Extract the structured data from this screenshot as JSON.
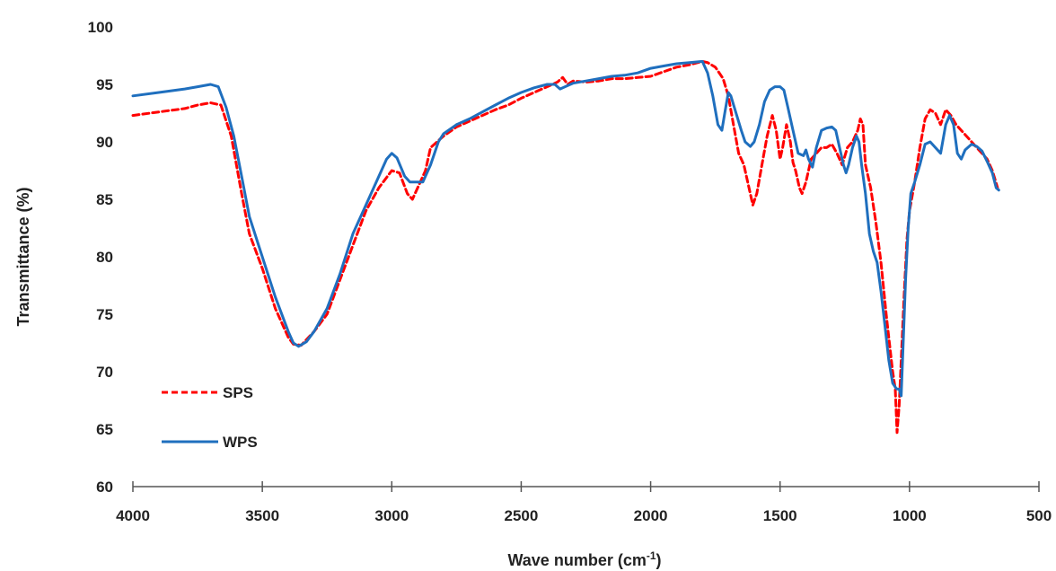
{
  "chart_data": {
    "type": "line",
    "title": "",
    "xlabel_main": "Wave number (cm",
    "xlabel_sup": "-1",
    "xlabel_end": ")",
    "ylabel": "Transmittance (%)",
    "xlim": [
      4000,
      500
    ],
    "ylim": [
      60,
      100
    ],
    "x_reversed": true,
    "x_ticks": [
      "4000",
      "3500",
      "3000",
      "2500",
      "2000",
      "1500",
      "1000",
      "500"
    ],
    "x_tick_values": [
      4000,
      3500,
      3000,
      2500,
      2000,
      1500,
      1000,
      500
    ],
    "y_ticks": [
      "60",
      "65",
      "70",
      "75",
      "80",
      "85",
      "90",
      "95",
      "100"
    ],
    "y_tick_values": [
      60,
      65,
      70,
      75,
      80,
      85,
      90,
      95,
      100
    ],
    "grid": false,
    "legend_position": "bottom-left",
    "series": [
      {
        "name": "SPS",
        "color": "#ff0000",
        "dash": "dashed",
        "points": [
          [
            4000,
            92.3
          ],
          [
            3900,
            92.6
          ],
          [
            3800,
            92.9
          ],
          [
            3750,
            93.2
          ],
          [
            3700,
            93.4
          ],
          [
            3660,
            93.2
          ],
          [
            3620,
            90.5
          ],
          [
            3580,
            85.5
          ],
          [
            3550,
            82.0
          ],
          [
            3500,
            79.0
          ],
          [
            3450,
            75.5
          ],
          [
            3400,
            73.0
          ],
          [
            3380,
            72.4
          ],
          [
            3350,
            72.3
          ],
          [
            3300,
            73.5
          ],
          [
            3250,
            75.0
          ],
          [
            3200,
            78.0
          ],
          [
            3150,
            81.0
          ],
          [
            3100,
            84.0
          ],
          [
            3050,
            86.0
          ],
          [
            3000,
            87.5
          ],
          [
            2970,
            87.3
          ],
          [
            2940,
            85.5
          ],
          [
            2920,
            85.0
          ],
          [
            2900,
            86.0
          ],
          [
            2870,
            87.5
          ],
          [
            2850,
            89.5
          ],
          [
            2800,
            90.5
          ],
          [
            2750,
            91.3
          ],
          [
            2700,
            91.8
          ],
          [
            2650,
            92.3
          ],
          [
            2600,
            92.8
          ],
          [
            2550,
            93.2
          ],
          [
            2500,
            93.8
          ],
          [
            2450,
            94.3
          ],
          [
            2400,
            94.8
          ],
          [
            2360,
            95.2
          ],
          [
            2340,
            95.6
          ],
          [
            2320,
            95.0
          ],
          [
            2300,
            95.3
          ],
          [
            2250,
            95.2
          ],
          [
            2200,
            95.3
          ],
          [
            2150,
            95.5
          ],
          [
            2100,
            95.5
          ],
          [
            2050,
            95.6
          ],
          [
            2000,
            95.7
          ],
          [
            1950,
            96.1
          ],
          [
            1900,
            96.5
          ],
          [
            1850,
            96.7
          ],
          [
            1800,
            97.0
          ],
          [
            1780,
            96.9
          ],
          [
            1750,
            96.5
          ],
          [
            1720,
            95.5
          ],
          [
            1700,
            94.0
          ],
          [
            1680,
            91.5
          ],
          [
            1660,
            89.0
          ],
          [
            1640,
            88.0
          ],
          [
            1620,
            86.0
          ],
          [
            1605,
            84.5
          ],
          [
            1590,
            85.5
          ],
          [
            1570,
            88.0
          ],
          [
            1550,
            90.5
          ],
          [
            1530,
            92.3
          ],
          [
            1515,
            91.0
          ],
          [
            1500,
            88.5
          ],
          [
            1490,
            89.5
          ],
          [
            1475,
            91.5
          ],
          [
            1460,
            90.0
          ],
          [
            1450,
            88.2
          ],
          [
            1440,
            87.5
          ],
          [
            1425,
            86.0
          ],
          [
            1415,
            85.5
          ],
          [
            1400,
            86.5
          ],
          [
            1380,
            88.5
          ],
          [
            1360,
            89.0
          ],
          [
            1340,
            89.5
          ],
          [
            1320,
            89.5
          ],
          [
            1300,
            89.8
          ],
          [
            1280,
            89.0
          ],
          [
            1260,
            88.0
          ],
          [
            1240,
            89.5
          ],
          [
            1220,
            90.0
          ],
          [
            1200,
            91.0
          ],
          [
            1190,
            92.0
          ],
          [
            1180,
            91.5
          ],
          [
            1170,
            88.0
          ],
          [
            1150,
            86.0
          ],
          [
            1130,
            83.0
          ],
          [
            1110,
            79.5
          ],
          [
            1090,
            75.0
          ],
          [
            1075,
            72.0
          ],
          [
            1065,
            70.0
          ],
          [
            1055,
            68.5
          ],
          [
            1048,
            64.7
          ],
          [
            1040,
            67.0
          ],
          [
            1030,
            72.0
          ],
          [
            1020,
            77.0
          ],
          [
            1010,
            81.5
          ],
          [
            1000,
            84.0
          ],
          [
            980,
            86.5
          ],
          [
            960,
            89.5
          ],
          [
            940,
            92.0
          ],
          [
            920,
            92.8
          ],
          [
            900,
            92.5
          ],
          [
            880,
            91.5
          ],
          [
            860,
            92.8
          ],
          [
            840,
            92.3
          ],
          [
            820,
            91.5
          ],
          [
            800,
            91.0
          ],
          [
            780,
            90.5
          ],
          [
            760,
            90.0
          ],
          [
            740,
            89.5
          ],
          [
            720,
            89.0
          ],
          [
            700,
            88.5
          ],
          [
            680,
            87.5
          ],
          [
            660,
            86.0
          ]
        ]
      },
      {
        "name": "WPS",
        "color": "#1f6fbe",
        "dash": "solid",
        "points": [
          [
            4000,
            94.0
          ],
          [
            3900,
            94.3
          ],
          [
            3800,
            94.6
          ],
          [
            3750,
            94.8
          ],
          [
            3700,
            95.0
          ],
          [
            3670,
            94.8
          ],
          [
            3640,
            93.0
          ],
          [
            3610,
            90.5
          ],
          [
            3580,
            87.0
          ],
          [
            3550,
            83.5
          ],
          [
            3500,
            80.0
          ],
          [
            3450,
            76.5
          ],
          [
            3400,
            73.5
          ],
          [
            3380,
            72.5
          ],
          [
            3360,
            72.2
          ],
          [
            3330,
            72.6
          ],
          [
            3300,
            73.5
          ],
          [
            3250,
            75.5
          ],
          [
            3200,
            78.5
          ],
          [
            3150,
            82.0
          ],
          [
            3100,
            84.5
          ],
          [
            3050,
            87.0
          ],
          [
            3020,
            88.5
          ],
          [
            3000,
            89.0
          ],
          [
            2980,
            88.6
          ],
          [
            2950,
            87.0
          ],
          [
            2930,
            86.5
          ],
          [
            2900,
            86.5
          ],
          [
            2880,
            86.5
          ],
          [
            2850,
            88.0
          ],
          [
            2820,
            90.0
          ],
          [
            2800,
            90.7
          ],
          [
            2750,
            91.5
          ],
          [
            2700,
            92.0
          ],
          [
            2650,
            92.6
          ],
          [
            2600,
            93.2
          ],
          [
            2550,
            93.8
          ],
          [
            2500,
            94.3
          ],
          [
            2450,
            94.7
          ],
          [
            2400,
            95.0
          ],
          [
            2370,
            95.0
          ],
          [
            2350,
            94.6
          ],
          [
            2300,
            95.1
          ],
          [
            2250,
            95.3
          ],
          [
            2200,
            95.5
          ],
          [
            2150,
            95.7
          ],
          [
            2100,
            95.8
          ],
          [
            2050,
            96.0
          ],
          [
            2000,
            96.4
          ],
          [
            1950,
            96.6
          ],
          [
            1900,
            96.8
          ],
          [
            1850,
            96.9
          ],
          [
            1800,
            97.0
          ],
          [
            1780,
            96.0
          ],
          [
            1760,
            94.0
          ],
          [
            1740,
            91.5
          ],
          [
            1725,
            91.0
          ],
          [
            1710,
            93.0
          ],
          [
            1700,
            94.3
          ],
          [
            1690,
            94.0
          ],
          [
            1670,
            92.5
          ],
          [
            1650,
            91.0
          ],
          [
            1635,
            90.0
          ],
          [
            1615,
            89.6
          ],
          [
            1600,
            90.0
          ],
          [
            1580,
            91.5
          ],
          [
            1560,
            93.5
          ],
          [
            1540,
            94.5
          ],
          [
            1520,
            94.8
          ],
          [
            1500,
            94.8
          ],
          [
            1485,
            94.5
          ],
          [
            1470,
            93.0
          ],
          [
            1450,
            91.0
          ],
          [
            1430,
            89.0
          ],
          [
            1410,
            88.8
          ],
          [
            1400,
            89.3
          ],
          [
            1390,
            88.5
          ],
          [
            1375,
            87.8
          ],
          [
            1360,
            89.5
          ],
          [
            1340,
            91.0
          ],
          [
            1320,
            91.2
          ],
          [
            1300,
            91.3
          ],
          [
            1285,
            91.0
          ],
          [
            1270,
            89.5
          ],
          [
            1255,
            88.0
          ],
          [
            1245,
            87.3
          ],
          [
            1235,
            88.0
          ],
          [
            1220,
            89.5
          ],
          [
            1205,
            90.5
          ],
          [
            1195,
            90.0
          ],
          [
            1185,
            88.0
          ],
          [
            1170,
            85.5
          ],
          [
            1155,
            82.0
          ],
          [
            1140,
            80.5
          ],
          [
            1125,
            79.5
          ],
          [
            1110,
            77.0
          ],
          [
            1095,
            74.0
          ],
          [
            1080,
            71.0
          ],
          [
            1065,
            69.0
          ],
          [
            1050,
            68.5
          ],
          [
            1040,
            68.5
          ],
          [
            1032,
            67.9
          ],
          [
            1025,
            72.0
          ],
          [
            1015,
            78.0
          ],
          [
            1005,
            82.5
          ],
          [
            995,
            85.5
          ],
          [
            980,
            86.5
          ],
          [
            960,
            88.0
          ],
          [
            940,
            89.8
          ],
          [
            920,
            90.0
          ],
          [
            900,
            89.5
          ],
          [
            880,
            89.0
          ],
          [
            860,
            91.5
          ],
          [
            845,
            92.3
          ],
          [
            830,
            91.5
          ],
          [
            815,
            89.0
          ],
          [
            800,
            88.5
          ],
          [
            785,
            89.3
          ],
          [
            760,
            89.8
          ],
          [
            740,
            89.6
          ],
          [
            720,
            89.2
          ],
          [
            700,
            88.3
          ],
          [
            680,
            87.3
          ],
          [
            665,
            86.0
          ],
          [
            655,
            85.8
          ]
        ]
      }
    ]
  }
}
